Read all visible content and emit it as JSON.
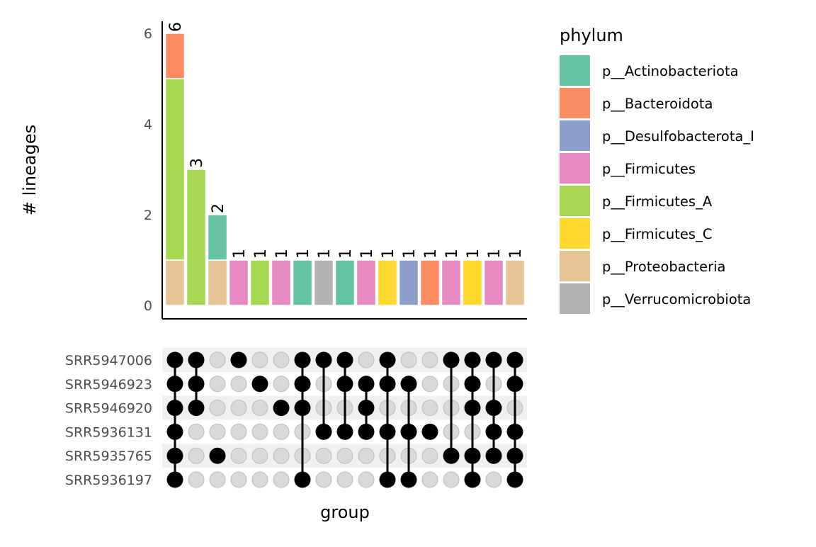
{
  "chart_data": {
    "type": "bar",
    "subtype": "upset",
    "ylabel": "# lineages",
    "xlabel": "group",
    "yticks": [
      0,
      2,
      4,
      6
    ],
    "ylim": [
      0,
      6.3
    ],
    "legend": {
      "title": "phylum",
      "placement": "right",
      "entries": [
        {
          "name": "p__Actinobacteriota",
          "color": "#66C2A5"
        },
        {
          "name": "p__Bacteroidota",
          "color": "#FC8D62"
        },
        {
          "name": "p__Desulfobacterota_I",
          "color": "#8DA0CB"
        },
        {
          "name": "p__Firmicutes",
          "color": "#E78AC3"
        },
        {
          "name": "p__Firmicutes_A",
          "color": "#A6D854"
        },
        {
          "name": "p__Firmicutes_C",
          "color": "#FFD92F"
        },
        {
          "name": "p__Proteobacteria",
          "color": "#E5C494"
        },
        {
          "name": "p__Verrucomicrobiota",
          "color": "#B3B3B3"
        }
      ]
    },
    "sets": [
      "SRR5947006",
      "SRR5946923",
      "SRR5946920",
      "SRR5936131",
      "SRR5935765",
      "SRR5936197"
    ],
    "intersections": [
      {
        "total": 6,
        "label": "6",
        "segments": [
          {
            "phylum": "p__Proteobacteria",
            "value": 1
          },
          {
            "phylum": "p__Firmicutes_A",
            "value": 4
          },
          {
            "phylum": "p__Bacteroidota",
            "value": 1
          }
        ],
        "members": [
          1,
          1,
          1,
          1,
          1,
          1
        ]
      },
      {
        "total": 3,
        "label": "3",
        "segments": [
          {
            "phylum": "p__Firmicutes_A",
            "value": 3
          }
        ],
        "members": [
          1,
          1,
          1,
          0,
          0,
          0
        ]
      },
      {
        "total": 2,
        "label": "2",
        "segments": [
          {
            "phylum": "p__Proteobacteria",
            "value": 1
          },
          {
            "phylum": "p__Actinobacteriota",
            "value": 1
          }
        ],
        "members": [
          0,
          0,
          0,
          0,
          1,
          0
        ]
      },
      {
        "total": 1,
        "label": "1",
        "segments": [
          {
            "phylum": "p__Firmicutes",
            "value": 1
          }
        ],
        "members": [
          1,
          0,
          0,
          0,
          0,
          0
        ]
      },
      {
        "total": 1,
        "label": "1",
        "segments": [
          {
            "phylum": "p__Firmicutes_A",
            "value": 1
          }
        ],
        "members": [
          0,
          1,
          0,
          0,
          0,
          0
        ]
      },
      {
        "total": 1,
        "label": "1",
        "segments": [
          {
            "phylum": "p__Firmicutes",
            "value": 1
          }
        ],
        "members": [
          0,
          0,
          1,
          0,
          0,
          0
        ]
      },
      {
        "total": 1,
        "label": "1",
        "segments": [
          {
            "phylum": "p__Actinobacteriota",
            "value": 1
          }
        ],
        "members": [
          1,
          1,
          1,
          0,
          0,
          1
        ]
      },
      {
        "total": 1,
        "label": "1",
        "segments": [
          {
            "phylum": "p__Verrucomicrobiota",
            "value": 1
          }
        ],
        "members": [
          1,
          0,
          0,
          1,
          0,
          0
        ]
      },
      {
        "total": 1,
        "label": "1",
        "segments": [
          {
            "phylum": "p__Actinobacteriota",
            "value": 1
          }
        ],
        "members": [
          1,
          1,
          0,
          1,
          0,
          0
        ]
      },
      {
        "total": 1,
        "label": "1",
        "segments": [
          {
            "phylum": "p__Firmicutes",
            "value": 1
          }
        ],
        "members": [
          0,
          1,
          1,
          1,
          0,
          0
        ]
      },
      {
        "total": 1,
        "label": "1",
        "segments": [
          {
            "phylum": "p__Firmicutes_C",
            "value": 1
          }
        ],
        "members": [
          1,
          1,
          0,
          1,
          0,
          1
        ]
      },
      {
        "total": 1,
        "label": "1",
        "segments": [
          {
            "phylum": "p__Desulfobacterota_I",
            "value": 1
          }
        ],
        "members": [
          0,
          1,
          0,
          1,
          0,
          1
        ]
      },
      {
        "total": 1,
        "label": "1",
        "segments": [
          {
            "phylum": "p__Bacteroidota",
            "value": 1
          }
        ],
        "members": [
          0,
          0,
          0,
          1,
          0,
          0
        ]
      },
      {
        "total": 1,
        "label": "1",
        "segments": [
          {
            "phylum": "p__Firmicutes",
            "value": 1
          }
        ],
        "members": [
          1,
          0,
          0,
          0,
          1,
          0
        ]
      },
      {
        "total": 1,
        "label": "1",
        "segments": [
          {
            "phylum": "p__Firmicutes_C",
            "value": 1
          }
        ],
        "members": [
          1,
          1,
          1,
          0,
          1,
          1
        ]
      },
      {
        "total": 1,
        "label": "1",
        "segments": [
          {
            "phylum": "p__Firmicutes",
            "value": 1
          }
        ],
        "members": [
          1,
          0,
          1,
          1,
          1,
          0
        ]
      },
      {
        "total": 1,
        "label": "1",
        "segments": [
          {
            "phylum": "p__Proteobacteria",
            "value": 1
          }
        ],
        "members": [
          1,
          1,
          0,
          1,
          1,
          1
        ]
      }
    ]
  }
}
